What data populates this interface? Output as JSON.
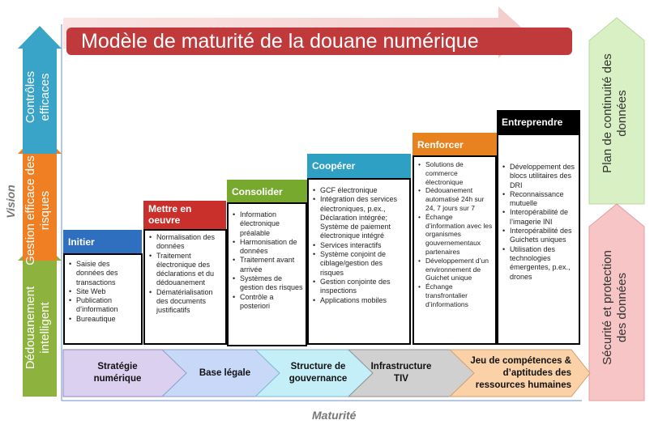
{
  "title": "Modèle de maturité de la douane numérique",
  "axes": {
    "vision": "Vision",
    "maturite": "Maturité"
  },
  "left_arrows": [
    {
      "label": "Dédouanement intelligent",
      "color": "#8db33e"
    },
    {
      "label": "Gestion efficace des risques",
      "color": "#ef7f22"
    },
    {
      "label": "Contrôles efficaces",
      "color": "#3aa3c8"
    }
  ],
  "right_arrows": [
    {
      "label": "Plan de continuité des données",
      "color": "#d8f0c4"
    },
    {
      "label": "Sécurité et protection des données",
      "color": "#f7c5c5"
    }
  ],
  "stages": [
    {
      "title": "Initier",
      "color": "#2f6fbf",
      "items": [
        "Saisie des données des transactions",
        "Site Web",
        "Publication d’information",
        "Bureautique"
      ]
    },
    {
      "title": "Mettre en oeuvre",
      "color": "#c9302c",
      "items": [
        "Normalisation des données",
        "Traitement électronique des déclarations et du dédouanement",
        "Dématérialisation des documents justificatifs"
      ]
    },
    {
      "title": "Consolider",
      "color": "#78a92f",
      "items": [
        "Information électronique préalable",
        "Harmonisation de données",
        "Traitement avant arrivée",
        "Systèmes de gestion des risques",
        "Contrôle a posteriori"
      ]
    },
    {
      "title": "Coopérer",
      "color": "#2ea0c4",
      "items": [
        "GCF électronique",
        "Intégration des services électroniques, p.ex., Déclaration intégrée; Système de paiement électronique intégré",
        "Services interactifs",
        "Système conjoint de ciblage/gestion des risques",
        "Gestion conjointe des inspections",
        "Applications mobiles"
      ]
    },
    {
      "title": "Renforcer",
      "color": "#e8821e",
      "items": [
        "Solutions de commerce électronique",
        "Dédouanement automatisé 24h sur 24, 7 jours sur 7",
        "Échange d’information avec les organismes gouvernementaux partenaires",
        "Développement d’un environnement de Guichet unique",
        "Échange transfrontalier d’informations"
      ]
    },
    {
      "title": "Entreprendre",
      "color": "#000000",
      "items": [
        "Développement des blocs utilitaires des DRI",
        "Reconnaissance mutuelle",
        "Interopérabilité de l’imagerie INI",
        "Interopérabilité des Guichets uniques",
        "Utilisation des technologies émergentes, p.ex., drones"
      ]
    }
  ],
  "foundations": [
    {
      "label": "Stratégie numérique",
      "color": "#dcd0f0"
    },
    {
      "label": "Base légale",
      "color": "#c8d8f8"
    },
    {
      "label": "Structure de gouvernance",
      "color": "#c4eef8"
    },
    {
      "label": "Infrastructure TIV",
      "color": "#d0d0d0"
    },
    {
      "label": "Jeu de compétences & d’aptitudes des ressources humaines",
      "color": "#fbd2a8"
    }
  ]
}
